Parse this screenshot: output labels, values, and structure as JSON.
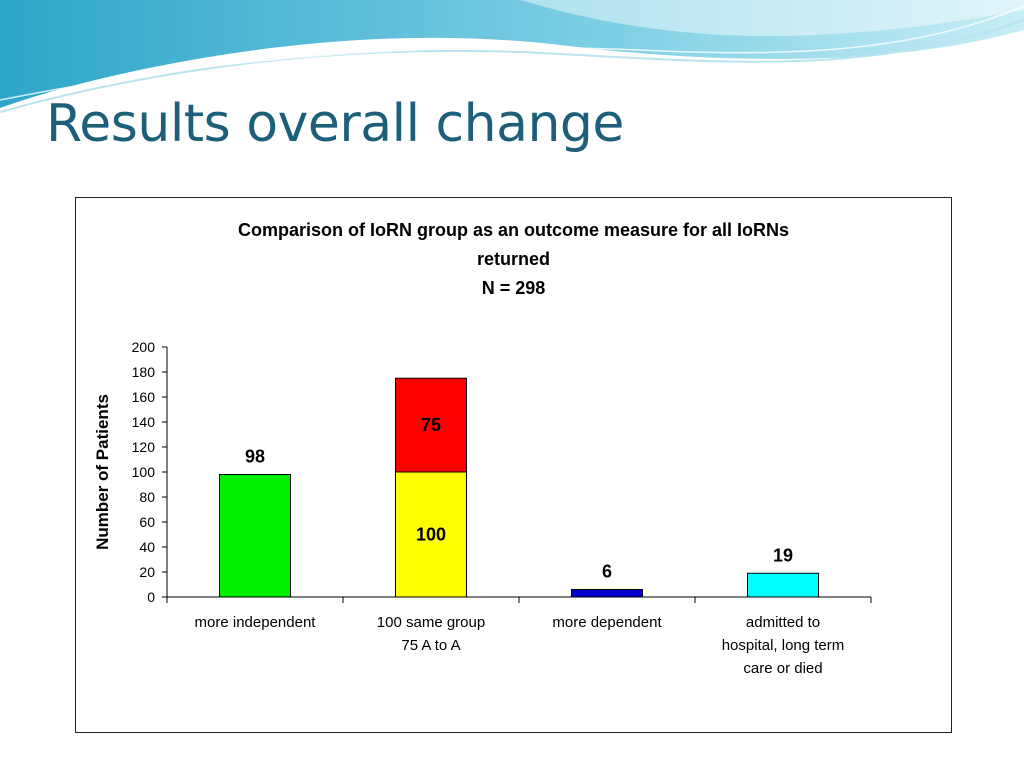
{
  "slide": {
    "title": "Results overall change"
  },
  "chart_data": {
    "type": "bar",
    "stacked": true,
    "title_lines": [
      "Comparison of IoRN group as an outcome measure for all IoRNs",
      "returned",
      "N = 298"
    ],
    "ylabel": "Number of Patients",
    "xlabel": "",
    "ylim": [
      0,
      200
    ],
    "yticks": [
      0,
      20,
      40,
      60,
      80,
      100,
      120,
      140,
      160,
      180,
      200
    ],
    "grid": false,
    "categories": [
      [
        "more independent"
      ],
      [
        "100 same group",
        "75 A to A"
      ],
      [
        "more dependent"
      ],
      [
        "admitted to",
        "hospital, long term",
        "care or died"
      ]
    ],
    "bars": [
      {
        "segments": [
          {
            "value": 98,
            "color": "#00ee00",
            "label": "98",
            "label_pos": "above"
          }
        ]
      },
      {
        "segments": [
          {
            "value": 100,
            "color": "#ffff00",
            "label": "100",
            "label_pos": "inside"
          },
          {
            "value": 75,
            "color": "#ff0000",
            "label": "75",
            "label_pos": "inside"
          }
        ]
      },
      {
        "segments": [
          {
            "value": 6,
            "color": "#0000cc",
            "label": "6",
            "label_pos": "above"
          }
        ]
      },
      {
        "segments": [
          {
            "value": 19,
            "color": "#00ffff",
            "label": "19",
            "label_pos": "above"
          }
        ]
      }
    ]
  }
}
